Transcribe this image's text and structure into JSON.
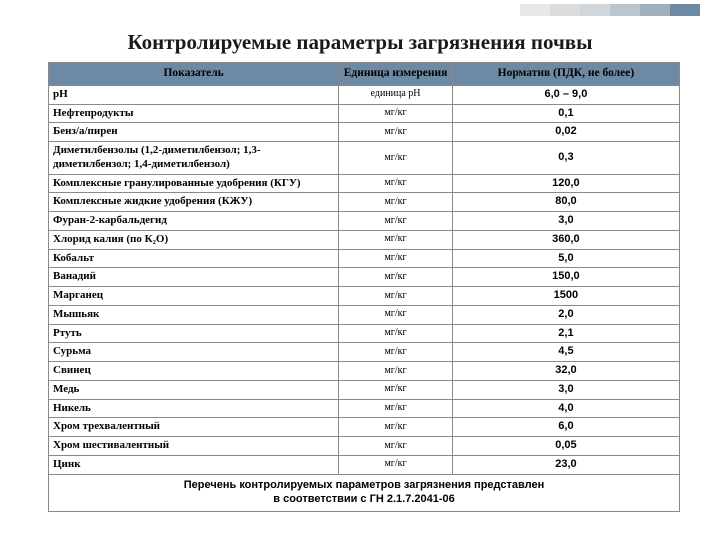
{
  "title": "Контролируемые параметры загрязнения почвы",
  "stripe_colors": [
    "#e8e8e8",
    "#dcdcdc",
    "#cfd7dd",
    "#b9c6cf",
    "#9fb1bf",
    "#6d89a3"
  ],
  "columns": [
    "Показатель",
    "Единица измерения",
    "Норматив (ПДК, не более)"
  ],
  "rows": [
    {
      "param": "рН",
      "unit": "единица рН",
      "norm": "6,0 – 9,0"
    },
    {
      "param": "Нефтепродукты",
      "unit": "мг/кг",
      "norm": "0,1"
    },
    {
      "param": "Бенз/а/пирен",
      "unit": "мг/кг",
      "norm": "0,02"
    },
    {
      "param": "Диметилбензолы (1,2-диметилбензол; 1,3-диметилбензол;   1,4-диметилбензол)",
      "unit": "мг/кг",
      "norm": "0,3"
    },
    {
      "param": "Комплексные гранулированные удобрения (КГУ)",
      "unit": "мг/кг",
      "norm": "120,0"
    },
    {
      "param": "Комплексные жидкие удобрения (КЖУ)",
      "unit": "мг/кг",
      "norm": "80,0"
    },
    {
      "param": "Фуран-2-карбальдегид",
      "unit": "мг/кг",
      "norm": "3,0"
    },
    {
      "param": "Хлорид калия (по К₂О)",
      "unit": "мг/кг",
      "norm": "360,0"
    },
    {
      "param": "Кобальт",
      "unit": "мг/кг",
      "norm": "5,0"
    },
    {
      "param": "Ванадий",
      "unit": "мг/кг",
      "norm": "150,0"
    },
    {
      "param": "Марганец",
      "unit": "мг/кг",
      "norm": "1500"
    },
    {
      "param": "Мышьяк",
      "unit": "мг/кг",
      "norm": "2,0"
    },
    {
      "param": "Ртуть",
      "unit": "мг/кг",
      "norm": "2,1"
    },
    {
      "param": "Сурьма",
      "unit": "мг/кг",
      "norm": "4,5"
    },
    {
      "param": "Свинец",
      "unit": "мг/кг",
      "norm": "32,0"
    },
    {
      "param": "Медь",
      "unit": "мг/кг",
      "norm": "3,0"
    },
    {
      "param": "Никель",
      "unit": "мг/кг",
      "norm": "4,0"
    },
    {
      "param": "Хром трехвалентный",
      "unit": "мг/кг",
      "norm": "6,0"
    },
    {
      "param": "Хром шестивалентный",
      "unit": "мг/кг",
      "norm": "0,05"
    },
    {
      "param": "Цинк",
      "unit": "мг/кг",
      "norm": "23,0"
    }
  ],
  "footer_line1": "Перечень контролируемых параметров  загрязнения  представлен",
  "footer_line2": "в соответствии  с   ГН 2.1.7.2041-06",
  "header_bg": "#6d89a3",
  "border_color": "#8a8a8a"
}
